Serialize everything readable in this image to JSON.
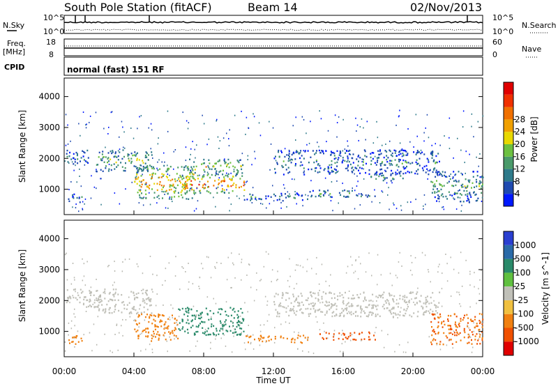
{
  "header": {
    "station": "South Pole Station (fitACF)",
    "beam": "Beam 14",
    "date": "02/Nov/2013"
  },
  "strips": {
    "nsky_label": "N.Sky",
    "nsearch_label": "N.Search",
    "freq_label_1": "Freq.",
    "freq_label_2": "[MHz]",
    "nave_label": "Nave",
    "cpid_label": "CPID",
    "cpid_text": "normal (fast) 151 RF",
    "noise_ticks_left": [
      "10^5",
      "10^0"
    ],
    "noise_ticks_right": [
      "10^5",
      "10^0"
    ],
    "freq_ticks": [
      "18",
      "8"
    ],
    "nave_ticks": [
      "60",
      "0"
    ]
  },
  "chart_data": [
    {
      "type": "heatmap",
      "panel": "power",
      "ylabel": "Slant Range [km]",
      "xlabel": "Time UT",
      "yticks": [
        1000,
        2000,
        3000,
        4000
      ],
      "ylim": [
        180,
        4600
      ],
      "xlim": [
        0,
        24
      ],
      "xticks": [
        "00:00",
        "04:00",
        "08:00",
        "12:00",
        "16:00",
        "20:00",
        "00:00"
      ],
      "colorbar": {
        "label": "Power [dB]",
        "ticks": [
          "4",
          "8",
          "12",
          "16",
          "20",
          "24",
          "28"
        ],
        "colors": [
          "#0018ff",
          "#1f4ab0",
          "#2e7a8a",
          "#4a9a6a",
          "#6cc040",
          "#e8d800",
          "#f0a000",
          "#f07000",
          "#f03000",
          "#e00000"
        ]
      },
      "regions": [
        {
          "t0": 0.1,
          "t1": 1.4,
          "r0": 1800,
          "r1": 2300,
          "level": 0.2
        },
        {
          "t0": 0.2,
          "t1": 1.0,
          "r0": 600,
          "r1": 900,
          "level": 0.2
        },
        {
          "t0": 1.8,
          "t1": 5.0,
          "r0": 1600,
          "r1": 2300,
          "level": 0.4
        },
        {
          "t0": 4.0,
          "t1": 7.5,
          "r0": 700,
          "r1": 1800,
          "level": 0.7
        },
        {
          "t0": 6.5,
          "t1": 10.3,
          "r0": 900,
          "r1": 1500,
          "level": 0.85
        },
        {
          "t0": 7.0,
          "t1": 10.3,
          "r0": 1500,
          "r1": 2000,
          "level": 0.5
        },
        {
          "t0": 10.3,
          "t1": 14.0,
          "r0": 650,
          "r1": 900,
          "level": 0.25
        },
        {
          "t0": 12.0,
          "t1": 21.5,
          "r0": 1500,
          "r1": 2300,
          "level": 0.2
        },
        {
          "t0": 14.0,
          "t1": 17.8,
          "r0": 750,
          "r1": 1000,
          "level": 0.3
        },
        {
          "t0": 17.5,
          "t1": 19.5,
          "r0": 1300,
          "r1": 1500,
          "level": 0.4
        },
        {
          "t0": 21.0,
          "t1": 24.0,
          "r0": 600,
          "r1": 1600,
          "level": 0.3
        }
      ]
    },
    {
      "type": "heatmap",
      "panel": "velocity",
      "ylabel": "Slant Range [km]",
      "xlabel": "Time UT",
      "yticks": [
        1000,
        2000,
        3000,
        4000
      ],
      "ylim": [
        180,
        4600
      ],
      "xlim": [
        0,
        24
      ],
      "xticks": [
        "00:00",
        "04:00",
        "08:00",
        "12:00",
        "16:00",
        "20:00",
        "00:00"
      ],
      "colorbar": {
        "label": "Velocity [m s^-1]",
        "ticks": [
          "1000",
          "500",
          "100",
          "25",
          "-25",
          "-100",
          "-500",
          "-1000"
        ],
        "colors": [
          "#2a3fd0",
          "#2a6aa8",
          "#2a8a6a",
          "#60c040",
          "#c0c0b8",
          "#f0c040",
          "#f08010",
          "#f05000",
          "#e00000"
        ]
      },
      "regions": [
        {
          "t0": 0.1,
          "t1": 2.0,
          "r0": 1800,
          "r1": 2400,
          "vel": 0
        },
        {
          "t0": 0.2,
          "t1": 1.2,
          "r0": 600,
          "r1": 900,
          "vel": -300
        },
        {
          "t0": 1.8,
          "t1": 5.0,
          "r0": 1600,
          "r1": 2400,
          "vel": 0
        },
        {
          "t0": 4.0,
          "t1": 6.5,
          "r0": 700,
          "r1": 1600,
          "vel": -300
        },
        {
          "t0": 6.5,
          "t1": 10.3,
          "r0": 900,
          "r1": 1800,
          "vel": 300
        },
        {
          "t0": 10.3,
          "t1": 14.0,
          "r0": 650,
          "r1": 900,
          "vel": -300
        },
        {
          "t0": 12.0,
          "t1": 21.5,
          "r0": 1500,
          "r1": 2300,
          "vel": 0
        },
        {
          "t0": 14.5,
          "t1": 17.8,
          "r0": 750,
          "r1": 1000,
          "vel": -700
        },
        {
          "t0": 21.0,
          "t1": 24.0,
          "r0": 600,
          "r1": 1600,
          "vel": -500
        }
      ]
    }
  ],
  "colors": {
    "noise_line": "#000000",
    "gray_scatter": "#b8b8b0"
  }
}
